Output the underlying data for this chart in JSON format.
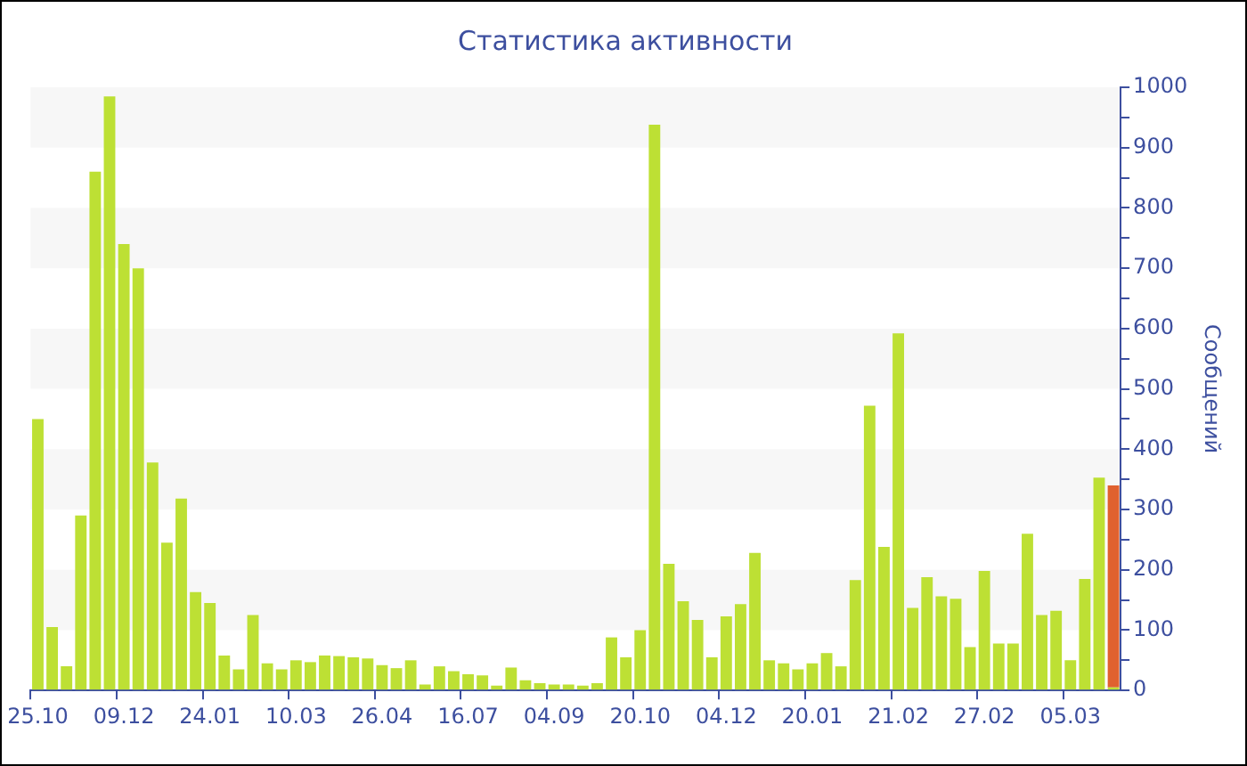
{
  "chart_data": {
    "type": "bar",
    "title": "Статистика активности",
    "ylabel": "Сообщений",
    "categories": [
      "25.10",
      null,
      null,
      null,
      null,
      null,
      "09.12",
      null,
      null,
      null,
      null,
      null,
      "24.01",
      null,
      null,
      null,
      null,
      null,
      "10.03",
      null,
      null,
      null,
      null,
      null,
      "26.04",
      null,
      null,
      null,
      null,
      null,
      "16.07",
      null,
      null,
      null,
      null,
      null,
      "04.09",
      null,
      null,
      null,
      null,
      null,
      "20.10",
      null,
      null,
      null,
      null,
      null,
      "04.12",
      null,
      null,
      null,
      null,
      null,
      "20.01",
      null,
      null,
      null,
      null,
      null,
      "21.02",
      null,
      null,
      null,
      null,
      null,
      "27.02",
      null,
      null,
      null,
      null,
      null,
      "05.03",
      null,
      null,
      null
    ],
    "stacked": true,
    "series": [
      {
        "color": "#bde034",
        "values": [
          450,
          105,
          40,
          290,
          860,
          985,
          740,
          700,
          378,
          245,
          318,
          163,
          145,
          58,
          35,
          125,
          45,
          35,
          50,
          47,
          58,
          57,
          55,
          53,
          42,
          37,
          50,
          10,
          40,
          32,
          27,
          25,
          8,
          38,
          17,
          12,
          10,
          10,
          8,
          12,
          88,
          55,
          100,
          938,
          210,
          148,
          117,
          55,
          123,
          143,
          228,
          50,
          45,
          35,
          45,
          62,
          40,
          183,
          472,
          238,
          592,
          137,
          188,
          156,
          152,
          72,
          198,
          78,
          78,
          260,
          125,
          132,
          50,
          185,
          353,
          5
        ]
      },
      {
        "color": "#e0612f",
        "values": [
          null,
          null,
          null,
          null,
          null,
          null,
          null,
          null,
          null,
          null,
          null,
          null,
          null,
          null,
          null,
          null,
          null,
          null,
          null,
          null,
          null,
          null,
          null,
          null,
          null,
          null,
          null,
          null,
          null,
          null,
          null,
          null,
          null,
          null,
          null,
          null,
          null,
          null,
          null,
          null,
          null,
          null,
          null,
          null,
          null,
          null,
          null,
          null,
          null,
          null,
          null,
          null,
          null,
          null,
          null,
          null,
          null,
          null,
          null,
          null,
          null,
          null,
          null,
          null,
          null,
          null,
          null,
          null,
          null,
          null,
          null,
          null,
          null,
          null,
          null,
          335
        ]
      }
    ],
    "ylim": [
      0,
      1000
    ],
    "yticks": [
      0,
      {
        "value": 50,
        "label": null
      },
      100,
      {
        "value": 150,
        "label": null
      },
      200,
      {
        "value": 250,
        "label": null
      },
      300,
      {
        "value": 350,
        "label": null
      },
      400,
      {
        "value": 450,
        "label": null
      },
      500,
      {
        "value": 550,
        "label": null
      },
      600,
      {
        "value": 650,
        "label": null
      },
      700,
      {
        "value": 750,
        "label": null
      },
      800,
      {
        "value": 850,
        "label": null
      },
      900,
      {
        "value": 950,
        "label": null
      },
      1000
    ],
    "legend": false
  }
}
